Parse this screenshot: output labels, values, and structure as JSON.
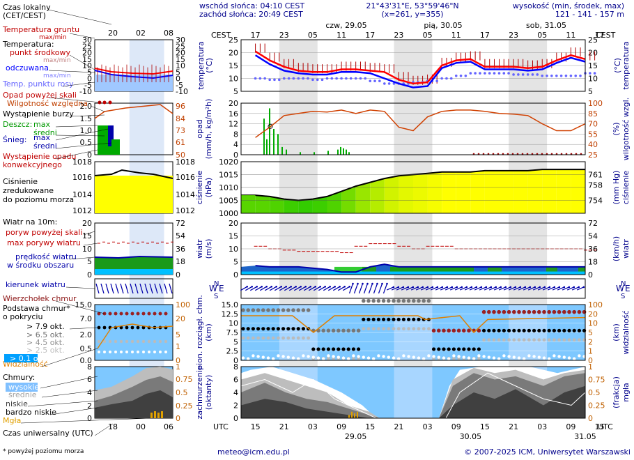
{
  "header": {
    "sunrise": "wschód słońca: 04:10 CEST",
    "sunset": "zachód słońca: 20:49 CEST",
    "coords": "21°43'31\"E, 53°59'46\"N",
    "grid": "(x=261, y=355)",
    "altitude_label": "wysokość (min, środek, max)",
    "altitude_values": "121 - 141 - 157 m"
  },
  "dates_top": [
    "czw, 29.05",
    "pią, 30.05",
    "sob, 31.05"
  ],
  "hours_cest": [
    "17",
    "23",
    "05",
    "11",
    "17",
    "23",
    "05",
    "11",
    "17",
    "23",
    "05",
    "11",
    "17"
  ],
  "hours_utc": [
    "15",
    "21",
    "03",
    "09",
    "15",
    "21",
    "03",
    "09",
    "15",
    "21",
    "03",
    "09",
    "15"
  ],
  "dates_bottom": [
    "29.05",
    "30.05",
    "31.05"
  ],
  "tz_cest": "CEST",
  "tz_utc": "UTC",
  "legend": {
    "local_time": "Czas lokalny\n(CET/CEST)",
    "local_hours": [
      "20",
      "02",
      "08"
    ],
    "utc_hours": [
      "18",
      "00",
      "06"
    ],
    "soil_temp": "Temperatura gruntu",
    "soil_sub": "max/min",
    "temperature": "Temperatura:",
    "mid_point": "punkt środkowy",
    "max_min": "max/min",
    "feels_like": "odczuwana",
    "dew_point": "Temp. punktu rosy",
    "precip_threshold": "Opad powyżej skali",
    "humidity": "Wilgotność względna",
    "storm": "Wystąpienie burzy",
    "rain": "Deszcz:",
    "snow": "Śnieg:",
    "max": "max",
    "mean": "średni",
    "convective": "Wystąpienie opadu\nkonwekcyjnego",
    "pressure_title": "Ciśnienie\nzredukowane\ndo poziomu morza",
    "wind_title": "Wiatr na 10m:",
    "gust_threshold": "poryw powyżej skali",
    "gust_max": "max porywy wiatru",
    "wind_mean": "prędkość wiatru\nw środku obszaru",
    "wind_dir": "kierunek wiatru",
    "cloud_top": "Wierzchołek chmur",
    "cloud_base": "Podstawa chmur*\no pokryciu",
    "okt79": "> 7.9 okt.",
    "okt65": "> 6.5 okt.",
    "okt45": "> 4.5 okt.",
    "okt25": "> 2.5 okt.",
    "okt01": "> 0.1 okt.",
    "visibility": "Widzialność",
    "clouds": "Chmury:",
    "high": "wysokie",
    "middle": "średnie",
    "low": "niskie",
    "very_low": "bardzo niskie",
    "fog": "Mgła",
    "utc_label": "Czas uniwersalny (UTC)",
    "footnote": "* powyżej poziomu morza"
  },
  "axis_titles": {
    "temp_l": "temperatura\n(°C)",
    "temp_r": "(°C)\ntemperatura",
    "precip_l": "opad\n(mm/h, kg/m²h)",
    "precip_r": "(%)\nwilgotność wzgl.",
    "press_l": "ciśnienie\n(hPa)",
    "press_r": "(mm Hg)\nciśnienie",
    "wind_l": "wiatr\n(m/s)",
    "wind_r": "(km/h)\nwiatr",
    "cloud_l": "pion. rozciągł. chm.\n(km)",
    "cloud_r": "(km)\nwidzialność",
    "cover_l": "zachmurzenie\n(oktanty)",
    "cover_r": "(frakcja)\nmgła"
  },
  "footer": {
    "email": "meteo@icm.edu.pl",
    "copyright": "© 2007-2025 ICM, Uniwersytet Warszawski"
  },
  "colors": {
    "temp": "#ff0000",
    "feels": "#0000ff",
    "dew": "#6464ff",
    "humidity": "#d04000",
    "press_high": "#ffff00",
    "press_low": "#33cc00",
    "wind_mean": "#0000aa",
    "night": "#e0e0e0",
    "cloud_bg": "#7ec8ff"
  },
  "chart_data": [
    {
      "type": "line",
      "title": "temperatura (°C)",
      "ylim": [
        5,
        25
      ],
      "yticks": [
        5,
        10,
        15,
        20,
        25
      ],
      "x_hours_utc": [
        15,
        18,
        21,
        24,
        27,
        30,
        33,
        36,
        39,
        42,
        45,
        48,
        51,
        54,
        57,
        60,
        63,
        66,
        69,
        72,
        75,
        78,
        81,
        84
      ],
      "series": [
        {
          "name": "punkt środkowy",
          "values": [
            20.5,
            17,
            14.5,
            13,
            12.5,
            12.5,
            13.5,
            13.5,
            13,
            12.5,
            9.5,
            8,
            8.5,
            15,
            17,
            17.5,
            14.5,
            14.5,
            14.5,
            14,
            14.5,
            17,
            19,
            17.5
          ]
        },
        {
          "name": "odczuwana",
          "values": [
            19,
            15.5,
            13,
            12,
            11.5,
            11.5,
            12.5,
            12.5,
            12,
            10,
            8,
            6.5,
            7,
            14,
            16,
            16.5,
            13.5,
            13.5,
            13.5,
            13,
            13.5,
            16,
            18,
            16.5
          ]
        },
        {
          "name": "Temp. punktu rosy",
          "values": [
            10,
            9.5,
            10,
            10,
            9.5,
            10,
            10,
            10,
            9,
            8,
            8,
            8.5,
            9,
            10,
            11,
            12,
            12,
            12,
            11.5,
            11.5,
            11,
            11,
            11,
            12
          ]
        }
      ]
    },
    {
      "type": "bar",
      "title": "opad (mm/h, kg/m²h)",
      "ylim": [
        0,
        20
      ],
      "y2lim": [
        25,
        100
      ],
      "series": [
        {
          "name": "Wilgotność względna",
          "values": [
            50,
            65,
            82,
            85,
            88,
            87,
            90,
            85,
            90,
            88,
            65,
            60,
            80,
            88,
            90,
            90,
            88,
            85,
            84,
            82,
            70,
            60,
            60,
            70
          ]
        }
      ]
    },
    {
      "type": "area",
      "title": "ciśnienie (hPa)",
      "ylim": [
        1000,
        1020
      ],
      "y2ticks": [
        754,
        758,
        761
      ],
      "series": [
        {
          "name": "Ciśnienie",
          "values": [
            1007,
            1006.5,
            1005.5,
            1005,
            1005.5,
            1006.5,
            1008.5,
            1010.5,
            1012,
            1013.5,
            1014.5,
            1015,
            1015.5,
            1016,
            1016,
            1016,
            1016.5,
            1016.5,
            1016.5,
            1016.5,
            1017,
            1017,
            1017,
            1017
          ]
        }
      ]
    },
    {
      "type": "area",
      "title": "wiatr (m/s)",
      "ylim": [
        0,
        20
      ],
      "y2ticks": [
        0,
        18,
        36,
        54,
        72
      ],
      "series": [
        {
          "name": "prędkość wiatru",
          "values": [
            3.5,
            3,
            3,
            3,
            2.5,
            2,
            1,
            1,
            3,
            4,
            3,
            3,
            3,
            3,
            3,
            3,
            3,
            3,
            3,
            3,
            3,
            3,
            3,
            3
          ]
        },
        {
          "name": "max porywy wiatru",
          "values": [
            11,
            10,
            9.5,
            9,
            9,
            9,
            8.5,
            11,
            12,
            12,
            11,
            10,
            11,
            11,
            10,
            10,
            10,
            10,
            10,
            10,
            10,
            10,
            10,
            9.5
          ]
        }
      ]
    },
    {
      "type": "scatter",
      "title": "pion. rozciągł. chm. (km)",
      "ylim": [
        0,
        15
      ],
      "yticks": [
        0,
        2.5,
        5,
        7.5,
        10,
        12.5,
        15.0
      ],
      "y2ticks": [
        0,
        1,
        2,
        5,
        10,
        20,
        100
      ]
    },
    {
      "type": "area",
      "title": "zachmurzenie (oktanty)",
      "ylim": [
        0,
        8
      ],
      "yticks": [
        0,
        2,
        4,
        6,
        8
      ],
      "y2ticks": [
        0,
        0.25,
        0.5,
        0.75,
        1
      ]
    }
  ]
}
